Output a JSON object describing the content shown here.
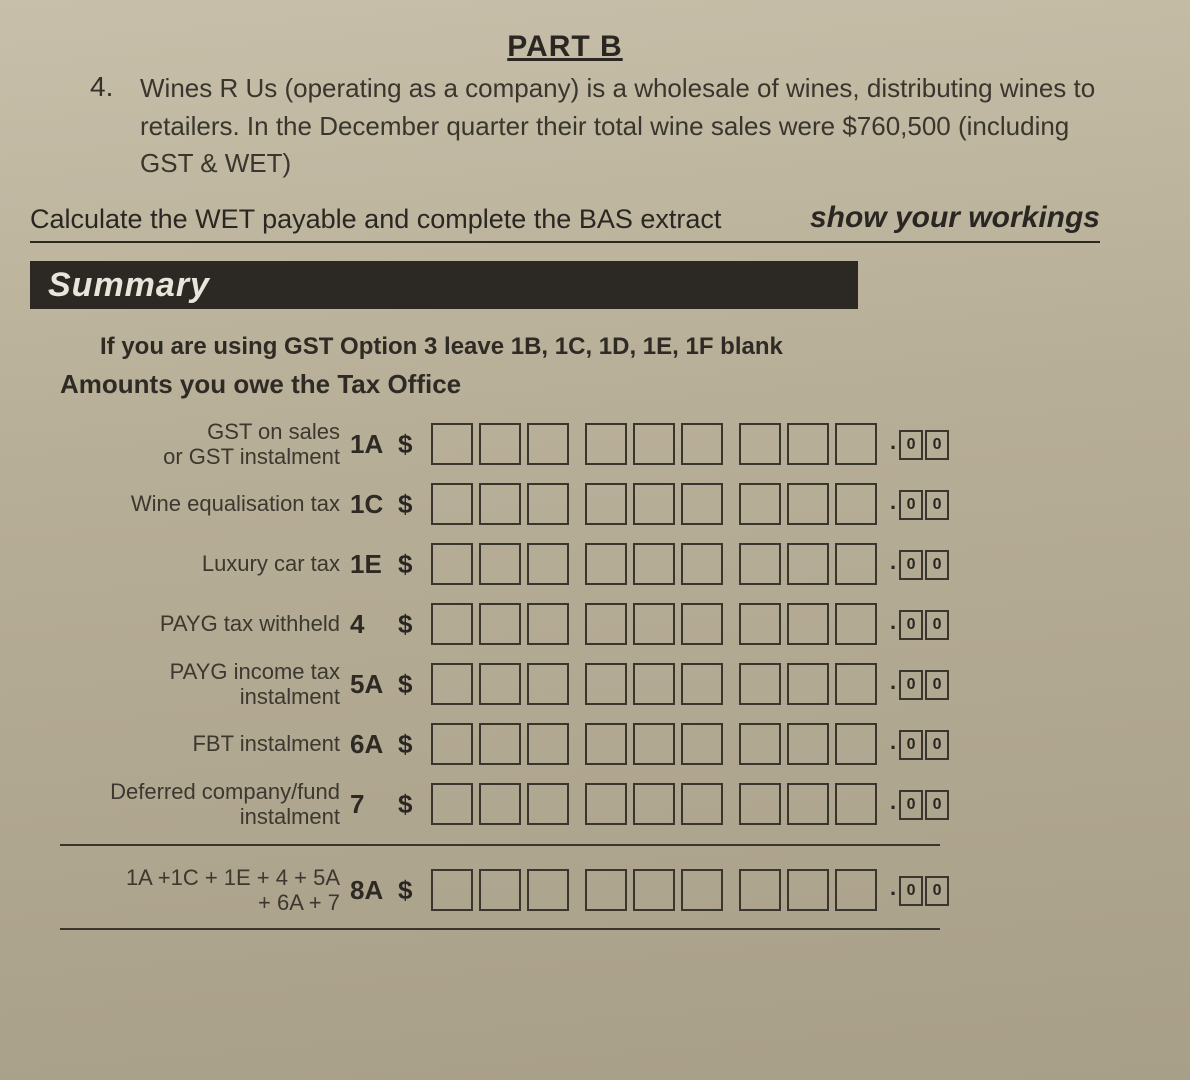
{
  "part_title": "PART B",
  "question_number": "4.",
  "question_text": "Wines R Us (operating as a company) is a wholesale of wines, distributing wines to retailers. In the December quarter their total wine sales were $760,500 (including GST & WET)",
  "instruction_left": "Calculate the WET payable and complete the BAS extract",
  "instruction_right": "show your workings",
  "summary_title": "Summary",
  "option3_note": "If you are using GST Option 3 leave 1B, 1C, 1D, 1E, 1F blank",
  "section_subtitle": "Amounts you owe the Tax Office",
  "digit_groups": [
    3,
    3,
    3
  ],
  "cents_suffix": ".00",
  "rows": [
    {
      "label": "GST on sales\nor GST instalment",
      "code": "1A"
    },
    {
      "label": "Wine equalisation tax",
      "code": "1C"
    },
    {
      "label": "Luxury car tax",
      "code": "1E"
    },
    {
      "label": "PAYG tax withheld",
      "code": "4"
    },
    {
      "label": "PAYG income tax\ninstalment",
      "code": "5A"
    },
    {
      "label": "FBT instalment",
      "code": "6A"
    },
    {
      "label": "Deferred company/fund\ninstalment",
      "code": "7"
    }
  ],
  "total_row": {
    "label": "1A +1C + 1E + 4 + 5A\n+ 6A + 7",
    "code": "8A"
  },
  "colors": {
    "page_bg": "#b7ae97",
    "text": "#2f2b24",
    "bar_bg": "#2c2924",
    "bar_fg": "#e9e5db",
    "box_border": "#3a362d"
  }
}
